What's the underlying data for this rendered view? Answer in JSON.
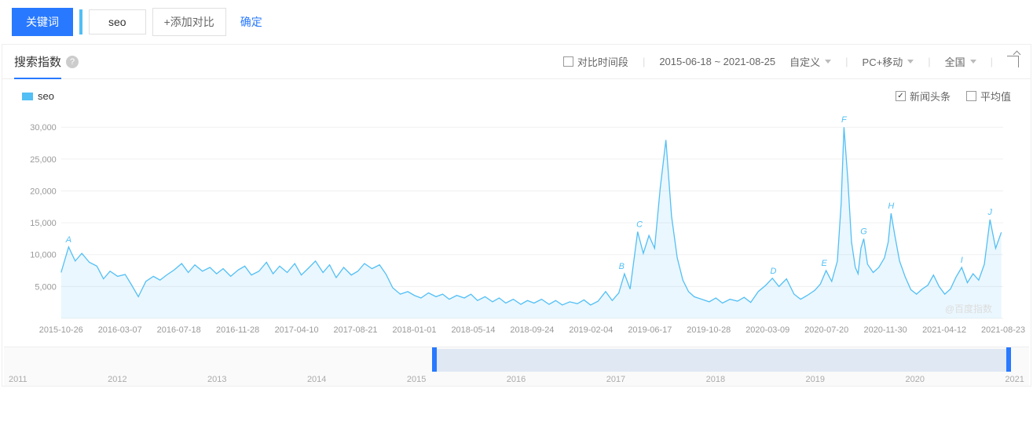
{
  "topbar": {
    "keyword_button": "关键词",
    "term": "seo",
    "add_compare": "+添加对比",
    "confirm": "确定"
  },
  "panel": {
    "title": "搜索指数",
    "compare_period": "对比时间段",
    "date_range": "2015-06-18 ~ 2021-08-25",
    "custom": "自定义",
    "device": "PC+移动",
    "region": "全国"
  },
  "legend": {
    "series_name": "seo",
    "news_headlines": "新闻头条",
    "average": "平均值",
    "news_checked": true,
    "avg_checked": false
  },
  "chart": {
    "type": "line",
    "series_color": "#52bff5",
    "fill_opacity": 0.12,
    "background_color": "#ffffff",
    "grid_color": "#f0f0f0",
    "text_color": "#999999",
    "y_ticks": [
      5000,
      10000,
      15000,
      20000,
      25000,
      30000
    ],
    "y_tick_labels": [
      "5,000",
      "10,000",
      "15,000",
      "20,000",
      "25,000",
      "30,000"
    ],
    "ylim": [
      0,
      32000
    ],
    "x_tick_labels": [
      "2015-10-26",
      "2016-03-07",
      "2016-07-18",
      "2016-11-28",
      "2017-04-10",
      "2017-08-21",
      "2018-01-01",
      "2018-05-14",
      "2018-09-24",
      "2019-02-04",
      "2019-06-17",
      "2019-10-28",
      "2020-03-09",
      "2020-07-20",
      "2020-11-30",
      "2021-04-12",
      "2021-08-23"
    ],
    "point_labels": [
      {
        "t": 0.008,
        "v": 11200,
        "text": "A"
      },
      {
        "t": 0.595,
        "v": 7000,
        "text": "B"
      },
      {
        "t": 0.614,
        "v": 13600,
        "text": "C"
      },
      {
        "t": 0.756,
        "v": 6300,
        "text": "D"
      },
      {
        "t": 0.81,
        "v": 7500,
        "text": "E"
      },
      {
        "t": 0.831,
        "v": 30000,
        "text": "F"
      },
      {
        "t": 0.852,
        "v": 12500,
        "text": "G"
      },
      {
        "t": 0.881,
        "v": 16500,
        "text": "H"
      },
      {
        "t": 0.956,
        "v": 8000,
        "text": "I"
      },
      {
        "t": 0.986,
        "v": 15500,
        "text": "J"
      }
    ],
    "data": [
      [
        0.0,
        7200
      ],
      [
        0.008,
        11200
      ],
      [
        0.015,
        9000
      ],
      [
        0.022,
        10200
      ],
      [
        0.03,
        8800
      ],
      [
        0.038,
        8200
      ],
      [
        0.045,
        6200
      ],
      [
        0.052,
        7400
      ],
      [
        0.06,
        6600
      ],
      [
        0.068,
        6900
      ],
      [
        0.075,
        5200
      ],
      [
        0.082,
        3400
      ],
      [
        0.09,
        5800
      ],
      [
        0.098,
        6600
      ],
      [
        0.105,
        6000
      ],
      [
        0.112,
        6800
      ],
      [
        0.12,
        7600
      ],
      [
        0.128,
        8600
      ],
      [
        0.135,
        7200
      ],
      [
        0.142,
        8400
      ],
      [
        0.15,
        7400
      ],
      [
        0.158,
        8000
      ],
      [
        0.165,
        7000
      ],
      [
        0.172,
        7800
      ],
      [
        0.18,
        6600
      ],
      [
        0.188,
        7600
      ],
      [
        0.195,
        8200
      ],
      [
        0.202,
        6800
      ],
      [
        0.21,
        7400
      ],
      [
        0.218,
        8800
      ],
      [
        0.225,
        7000
      ],
      [
        0.232,
        8200
      ],
      [
        0.24,
        7200
      ],
      [
        0.248,
        8600
      ],
      [
        0.255,
        6800
      ],
      [
        0.262,
        7800
      ],
      [
        0.27,
        9000
      ],
      [
        0.278,
        7200
      ],
      [
        0.285,
        8400
      ],
      [
        0.292,
        6400
      ],
      [
        0.3,
        8000
      ],
      [
        0.308,
        6800
      ],
      [
        0.315,
        7400
      ],
      [
        0.322,
        8600
      ],
      [
        0.33,
        7800
      ],
      [
        0.338,
        8400
      ],
      [
        0.345,
        6900
      ],
      [
        0.352,
        4800
      ],
      [
        0.36,
        3800
      ],
      [
        0.368,
        4200
      ],
      [
        0.375,
        3600
      ],
      [
        0.382,
        3200
      ],
      [
        0.39,
        4000
      ],
      [
        0.398,
        3400
      ],
      [
        0.405,
        3800
      ],
      [
        0.412,
        3000
      ],
      [
        0.42,
        3600
      ],
      [
        0.428,
        3200
      ],
      [
        0.435,
        3800
      ],
      [
        0.442,
        2800
      ],
      [
        0.45,
        3400
      ],
      [
        0.458,
        2600
      ],
      [
        0.465,
        3200
      ],
      [
        0.472,
        2400
      ],
      [
        0.48,
        3000
      ],
      [
        0.488,
        2200
      ],
      [
        0.495,
        2800
      ],
      [
        0.502,
        2400
      ],
      [
        0.51,
        3000
      ],
      [
        0.518,
        2200
      ],
      [
        0.525,
        2800
      ],
      [
        0.532,
        2100
      ],
      [
        0.54,
        2600
      ],
      [
        0.548,
        2300
      ],
      [
        0.555,
        2900
      ],
      [
        0.562,
        2100
      ],
      [
        0.57,
        2700
      ],
      [
        0.578,
        4200
      ],
      [
        0.585,
        2800
      ],
      [
        0.592,
        4000
      ],
      [
        0.598,
        7000
      ],
      [
        0.604,
        4600
      ],
      [
        0.612,
        13600
      ],
      [
        0.618,
        10200
      ],
      [
        0.624,
        13000
      ],
      [
        0.63,
        11000
      ],
      [
        0.636,
        20500
      ],
      [
        0.642,
        28000
      ],
      [
        0.648,
        16000
      ],
      [
        0.654,
        9500
      ],
      [
        0.66,
        6000
      ],
      [
        0.666,
        4200
      ],
      [
        0.672,
        3400
      ],
      [
        0.68,
        3000
      ],
      [
        0.688,
        2600
      ],
      [
        0.695,
        3200
      ],
      [
        0.702,
        2400
      ],
      [
        0.71,
        3000
      ],
      [
        0.718,
        2700
      ],
      [
        0.725,
        3300
      ],
      [
        0.732,
        2500
      ],
      [
        0.74,
        4200
      ],
      [
        0.748,
        5200
      ],
      [
        0.755,
        6300
      ],
      [
        0.762,
        5000
      ],
      [
        0.77,
        6200
      ],
      [
        0.778,
        3800
      ],
      [
        0.785,
        3000
      ],
      [
        0.792,
        3600
      ],
      [
        0.8,
        4400
      ],
      [
        0.806,
        5400
      ],
      [
        0.812,
        7500
      ],
      [
        0.818,
        5800
      ],
      [
        0.824,
        9000
      ],
      [
        0.828,
        18000
      ],
      [
        0.831,
        30000
      ],
      [
        0.835,
        22000
      ],
      [
        0.839,
        12000
      ],
      [
        0.843,
        8000
      ],
      [
        0.846,
        7000
      ],
      [
        0.849,
        11000
      ],
      [
        0.852,
        12500
      ],
      [
        0.856,
        8500
      ],
      [
        0.862,
        7200
      ],
      [
        0.868,
        8000
      ],
      [
        0.874,
        9500
      ],
      [
        0.878,
        12000
      ],
      [
        0.881,
        16500
      ],
      [
        0.885,
        13000
      ],
      [
        0.89,
        9000
      ],
      [
        0.896,
        6500
      ],
      [
        0.902,
        4500
      ],
      [
        0.908,
        3800
      ],
      [
        0.914,
        4600
      ],
      [
        0.92,
        5200
      ],
      [
        0.926,
        6800
      ],
      [
        0.932,
        5000
      ],
      [
        0.938,
        3800
      ],
      [
        0.944,
        4600
      ],
      [
        0.95,
        6500
      ],
      [
        0.956,
        8000
      ],
      [
        0.962,
        5600
      ],
      [
        0.968,
        7000
      ],
      [
        0.974,
        6000
      ],
      [
        0.98,
        8500
      ],
      [
        0.986,
        15500
      ],
      [
        0.992,
        11000
      ],
      [
        0.998,
        13500
      ]
    ],
    "watermark": "@百度指数"
  },
  "brush": {
    "years": [
      "2011",
      "2012",
      "2013",
      "2014",
      "2015",
      "2016",
      "2017",
      "2018",
      "2019",
      "2020",
      "2021"
    ],
    "sel_start_pct": 42,
    "sel_end_pct": 98
  }
}
